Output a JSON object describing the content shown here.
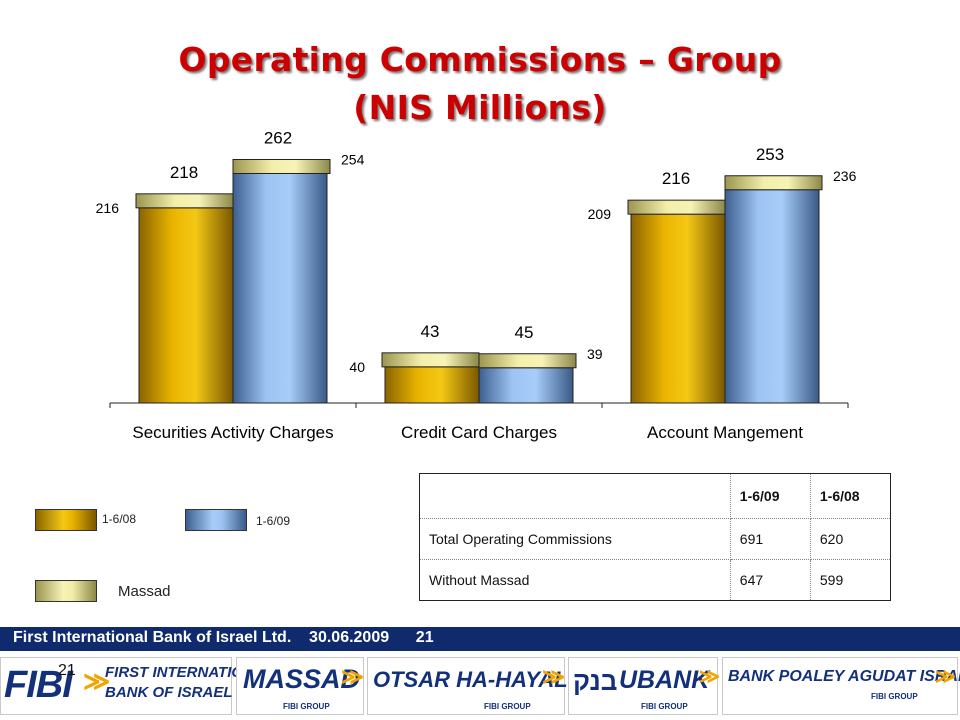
{
  "title": {
    "line1": "Operating Commissions – Group",
    "line2": "(NIS Millions)"
  },
  "colors": {
    "title": "#cc0000",
    "series_1_6_08": "#e5b100",
    "series_1_6_09": "#8fb7e8",
    "massad": "#eeea9c",
    "footer_bar": "#102a6e",
    "logo_text": "#13307a",
    "logo_swirl": "#f0a400"
  },
  "chart_data": {
    "type": "bar",
    "categories": [
      "Securities Activity Charges",
      "Credit Card Charges",
      "Account Mangement"
    ],
    "series": [
      {
        "name": "1-6/08",
        "values": [
          216,
          40,
          209
        ],
        "totals": [
          218,
          43,
          216
        ]
      },
      {
        "name": "1-6/09",
        "values": [
          254,
          39,
          236
        ],
        "totals": [
          262,
          45,
          253
        ]
      }
    ],
    "massad_series": {
      "name": "Massad"
    },
    "ylim": [
      0,
      280
    ],
    "grid": false,
    "legend": "bottom-left"
  },
  "legend": {
    "item_2008": "1-6/08",
    "item_2009": "1-6/09",
    "item_massad": "Massad"
  },
  "table": {
    "header": [
      "",
      "1-6/09",
      "1-6/08"
    ],
    "rows": [
      [
        "Total Operating Commissions",
        "691",
        "620"
      ],
      [
        "Without Massad",
        "647",
        "599"
      ]
    ]
  },
  "footer": {
    "text": "First International Bank of Israel Ltd.    30.06.2009      21",
    "page_number": "21"
  },
  "logos": {
    "fibi": "FIBI",
    "fibi_line1": "FIRST INTERNATIONAL",
    "fibi_line2": "BANK OF ISRAEL",
    "massad": "MASSAD",
    "otsar": "OTSAR HA-HAYAL",
    "ubank": "UBANK",
    "ubank_hebrew": "בנק",
    "poaley": "BANK POALEY AGUDAT ISRAEL",
    "fibi_group": "FIBI GROUP"
  }
}
